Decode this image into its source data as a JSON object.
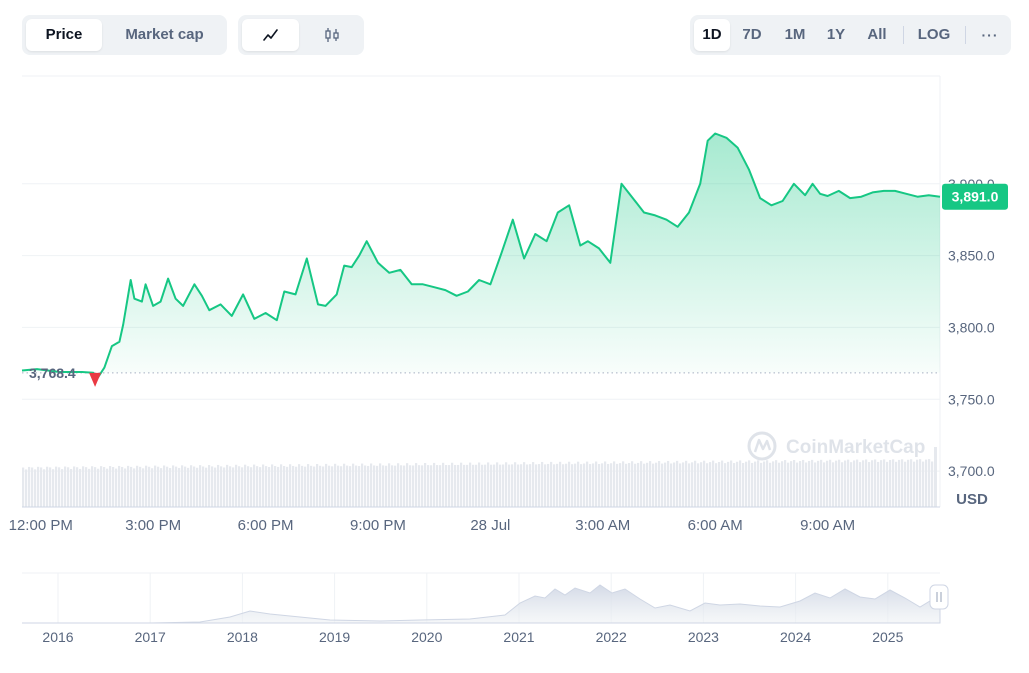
{
  "toolbar": {
    "tabs": [
      {
        "label": "Price",
        "active": true
      },
      {
        "label": "Market cap",
        "active": false
      }
    ],
    "chart_types": [
      {
        "icon": "line-chart-icon",
        "active": true
      },
      {
        "icon": "candlestick-icon",
        "active": false
      }
    ],
    "ranges": [
      {
        "label": "1D",
        "active": true
      },
      {
        "label": "7D",
        "active": false
      },
      {
        "label": "1M",
        "active": false
      },
      {
        "label": "1Y",
        "active": false
      },
      {
        "label": "All",
        "active": false
      }
    ],
    "log_label": "LOG",
    "more_label": "···"
  },
  "colors": {
    "line": "#16c784",
    "down_marker": "#ea3943",
    "badge": "#16c784",
    "grid": "#eff2f5",
    "text": "#58667e"
  },
  "chart_data": {
    "type": "line",
    "currency_label": "USD",
    "watermark": "CoinMarketCap",
    "ylim": [
      3675,
      3975
    ],
    "yticks": [
      "3,700.0",
      "3,750.0",
      "3,800.0",
      "3,850.0",
      "3,900.0"
    ],
    "ytick_values": [
      3700,
      3750,
      3800,
      3850,
      3900
    ],
    "xticks": [
      "12:00 PM",
      "3:00 PM",
      "6:00 PM",
      "9:00 PM",
      "28 Jul",
      "3:00 AM",
      "6:00 AM",
      "9:00 AM"
    ],
    "xtick_hours": [
      0.5,
      3.5,
      6.5,
      9.5,
      12.5,
      15.5,
      18.5,
      21.5
    ],
    "xlim_hours": [
      0,
      24.5
    ],
    "open_price": 3768.4,
    "open_label": "3,768.4",
    "current_price": 3891.0,
    "current_label": "3,891.0",
    "series": [
      {
        "hours": [
          0,
          0.4,
          1.0,
          1.6,
          1.9,
          2.0,
          2.2,
          2.4,
          2.6,
          2.7,
          2.9,
          3.0,
          3.2,
          3.3,
          3.5,
          3.7,
          3.9,
          4.1,
          4.3,
          4.6,
          4.8,
          5.0,
          5.3,
          5.6,
          5.9,
          6.2,
          6.5,
          6.8,
          7.0,
          7.3,
          7.6,
          7.9,
          8.1,
          8.4,
          8.6,
          8.8,
          9.0,
          9.2,
          9.5,
          9.8,
          10.1,
          10.4,
          10.7,
          11.0,
          11.3,
          11.6,
          11.9,
          12.2,
          12.5,
          12.8,
          13.1,
          13.4,
          13.7,
          14.0,
          14.3,
          14.6,
          14.9,
          15.1,
          15.4,
          15.7,
          16.0,
          16.3,
          16.6,
          16.9,
          17.2,
          17.5,
          17.8,
          18.1,
          18.3,
          18.5,
          18.8,
          19.1,
          19.4,
          19.7,
          20.0,
          20.3,
          20.6,
          20.9,
          21.1,
          21.3,
          21.5,
          21.8,
          22.1,
          22.4,
          22.7,
          23.0,
          23.3,
          23.6,
          23.9,
          24.2,
          24.5
        ],
        "values": [
          3770,
          3771,
          3769,
          3769,
          3768.4,
          3764,
          3772,
          3787,
          3790,
          3802,
          3833,
          3820,
          3818,
          3830,
          3815,
          3818,
          3834,
          3820,
          3815,
          3830,
          3822,
          3812,
          3816,
          3808,
          3823,
          3806,
          3810,
          3805,
          3825,
          3823,
          3848,
          3816,
          3815,
          3823,
          3843,
          3842,
          3850,
          3860,
          3845,
          3838,
          3840,
          3830,
          3830,
          3828,
          3826,
          3822,
          3825,
          3833,
          3830,
          3852,
          3875,
          3848,
          3865,
          3860,
          3880,
          3885,
          3857,
          3860,
          3855,
          3845,
          3900,
          3890,
          3880,
          3878,
          3875,
          3870,
          3880,
          3900,
          3930,
          3935,
          3932,
          3925,
          3910,
          3890,
          3885,
          3888,
          3900,
          3892,
          3900,
          3893,
          3891.5,
          3895,
          3890,
          3891,
          3894,
          3895,
          3895,
          3893,
          3891,
          3892,
          3891
        ]
      }
    ],
    "volume_note": "Volume bars shown under the price line",
    "navigator": {
      "year_labels": [
        "2016",
        "2017",
        "2018",
        "2019",
        "2020",
        "2021",
        "2022",
        "2023",
        "2024",
        "2025"
      ]
    }
  }
}
